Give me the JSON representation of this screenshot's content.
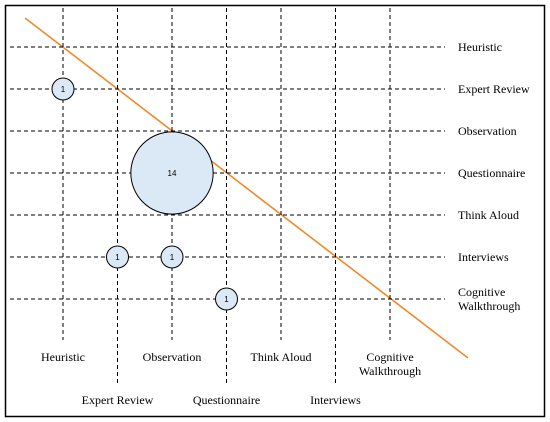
{
  "chart_data": {
    "type": "bubble",
    "categories": [
      "Heuristic",
      "Expert Review",
      "Observation",
      "Questionnaire",
      "Think Aloud",
      "Interviews",
      "Cognitive Walkthrough"
    ],
    "points": [
      {
        "x": "Heuristic",
        "y": "Expert Review",
        "value": 1
      },
      {
        "x": "Observation",
        "y": "Questionnaire",
        "value": 14
      },
      {
        "x": "Expert Review",
        "y": "Interviews",
        "value": 1
      },
      {
        "x": "Observation",
        "y": "Interviews",
        "value": 1
      },
      {
        "x": "Questionnaire",
        "y": "Cognitive Walkthrough",
        "value": 1
      }
    ],
    "bubble_color": "#dbe9f6",
    "diagonal_color": "#f0892a"
  }
}
